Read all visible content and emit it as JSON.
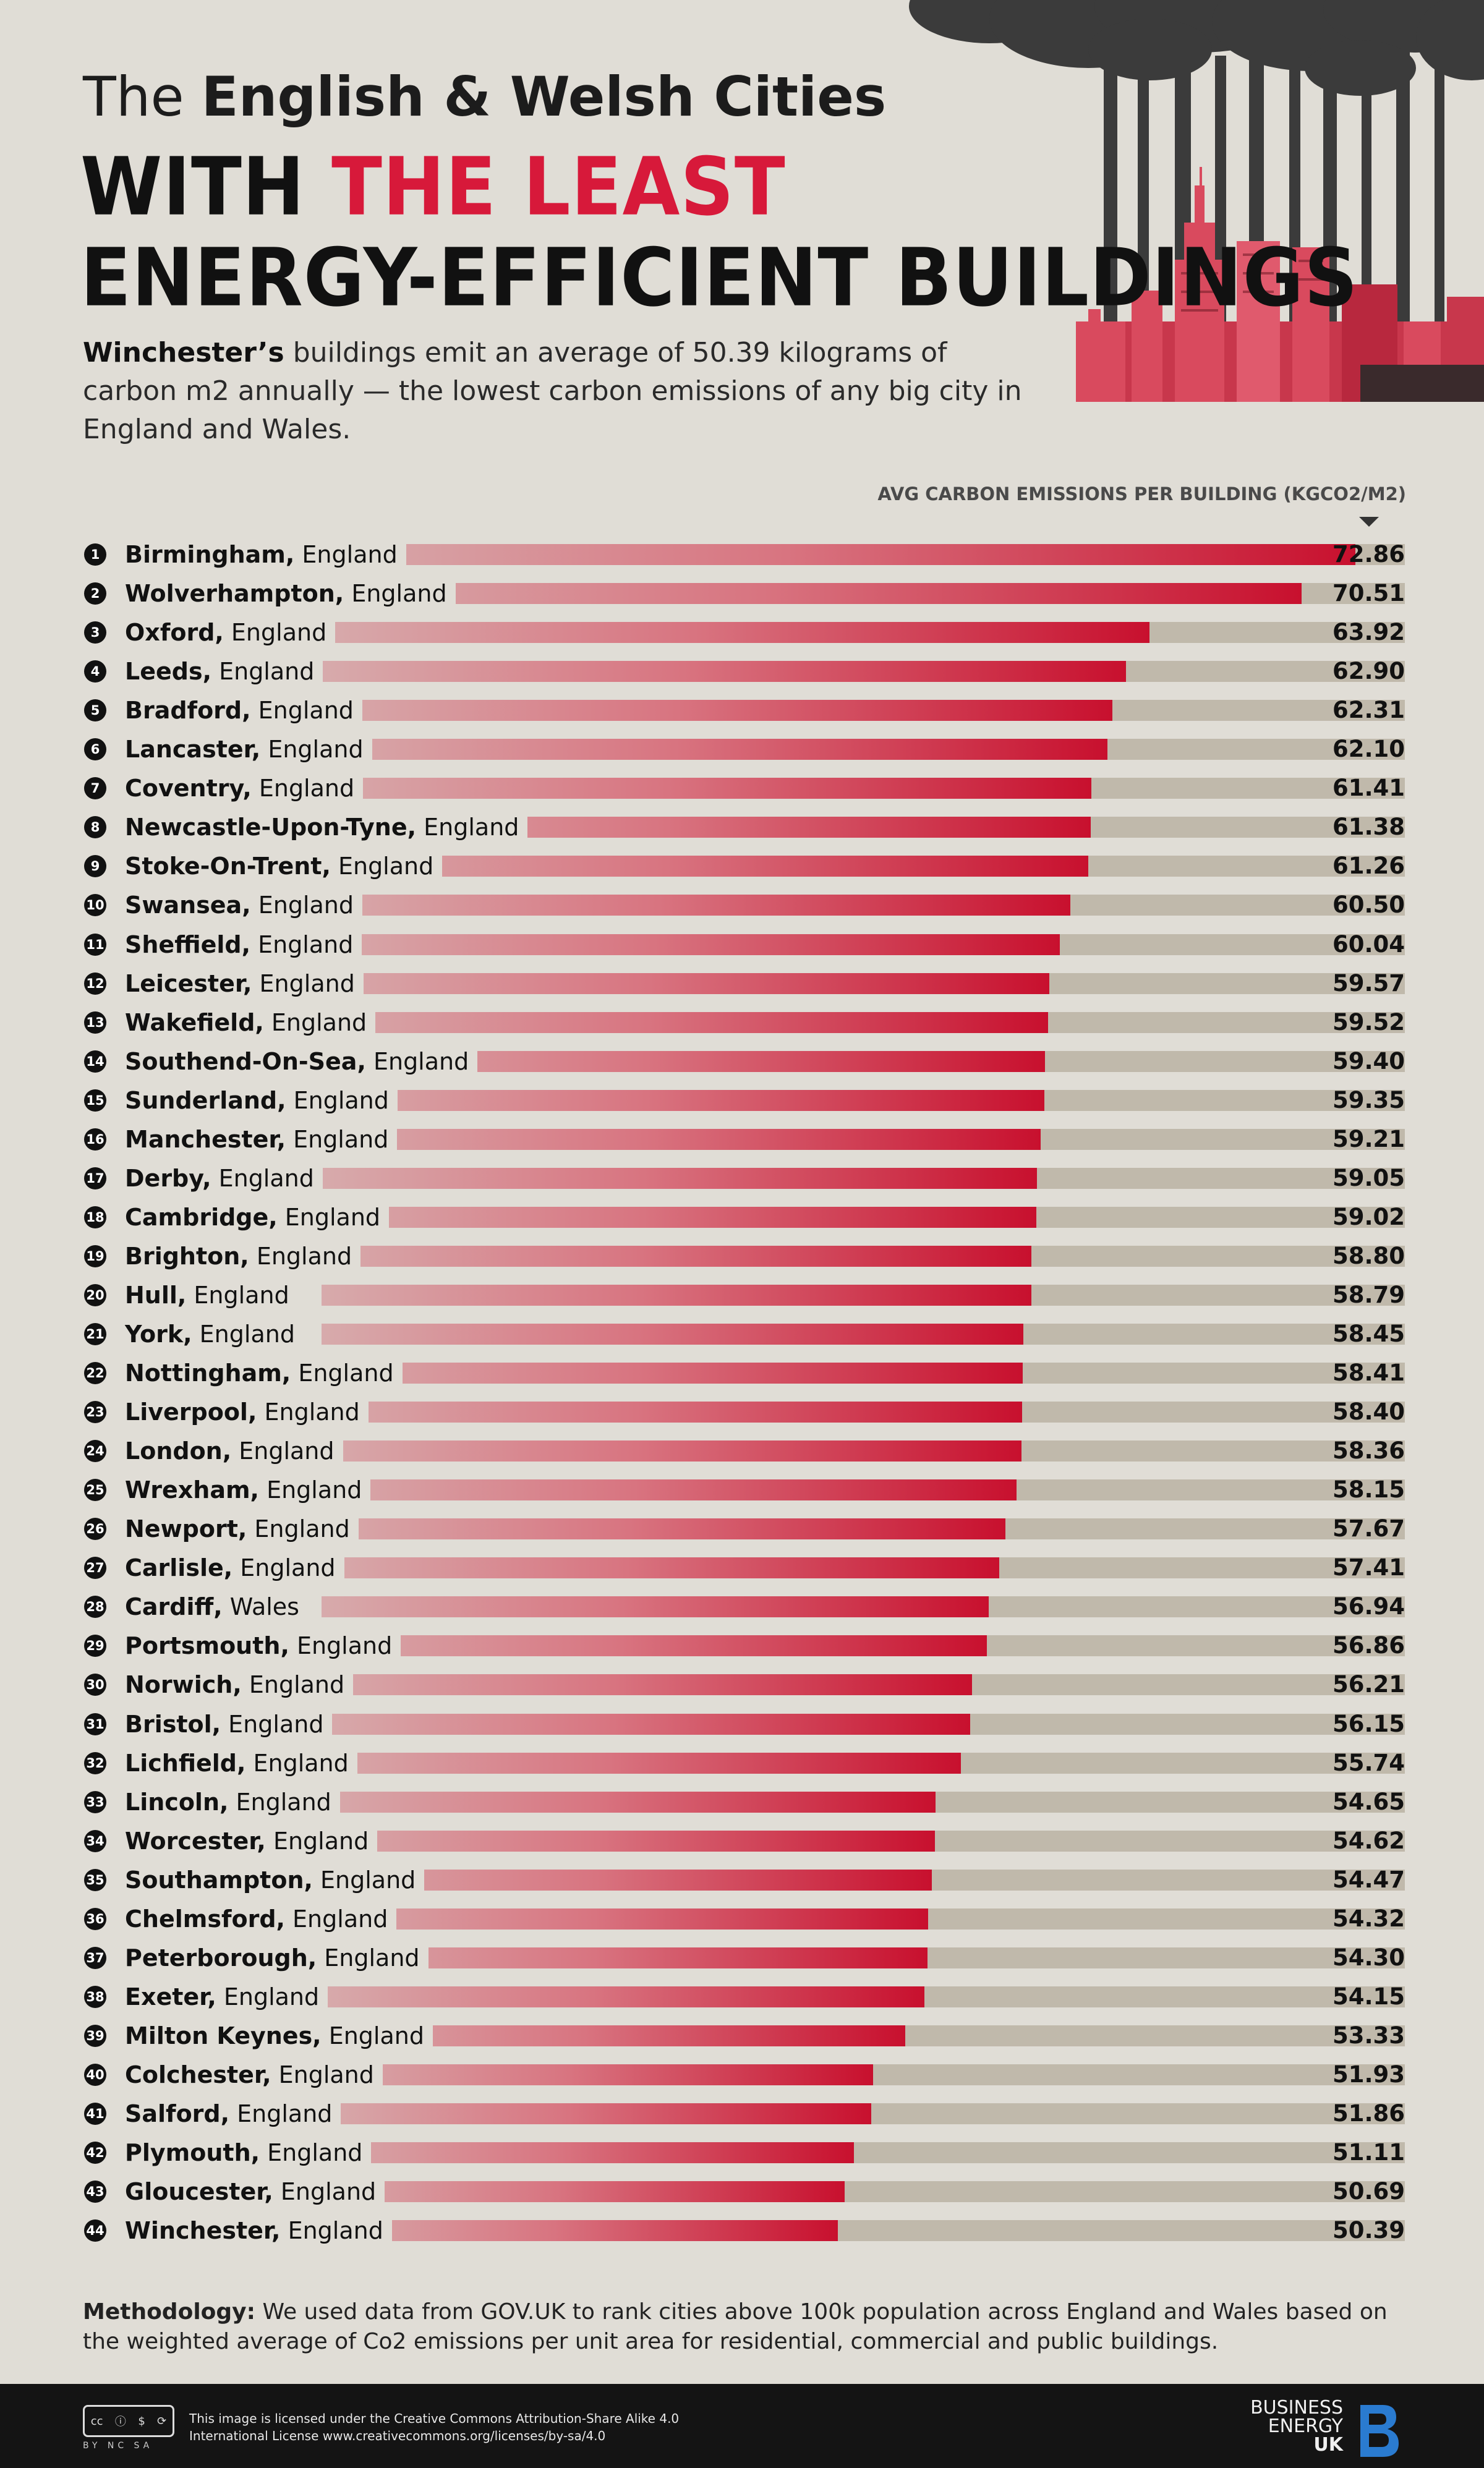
{
  "header": {
    "line1_plain": "The",
    "line1_bold": "English & Welsh Cities",
    "line2_plain": "WITH ",
    "line2_red": "THE LEAST",
    "line3": "ENERGY-EFFICIENT BUILDINGS"
  },
  "subtitle": {
    "bold": "Winchester’s",
    "text": " buildings emit an average of 50.39 kilograms of carbon m2 annually — the lowest carbon emissions of any big city in England and Wales."
  },
  "colors": {
    "accent_red": "#d7193a",
    "bar_end": "#c8102e",
    "track": "#c0b9ab",
    "background": "#e0ddd6"
  },
  "chart_data": {
    "type": "bar",
    "orientation": "horizontal",
    "title": "The English & Welsh Cities WITH THE LEAST ENERGY-EFFICIENT BUILDINGS",
    "value_axis_label": "AVG CARBON EMISSIONS PER BUILDING (KGCO2/M2)",
    "xlim": [
      28,
      75
    ],
    "rows": [
      {
        "rank": "1",
        "city": "Birmingham,",
        "country": " England",
        "value": 72.86,
        "value_label": "72.86"
      },
      {
        "rank": "2",
        "city": "Wolverhampton,",
        "country": " England",
        "value": 70.51,
        "value_label": "70.51"
      },
      {
        "rank": "3",
        "city": "Oxford,",
        "country": " England",
        "value": 63.92,
        "value_label": "63.92"
      },
      {
        "rank": "4",
        "city": "Leeds,",
        "country": " England",
        "value": 62.9,
        "value_label": "62.90"
      },
      {
        "rank": "5",
        "city": "Bradford,",
        "country": " England",
        "value": 62.31,
        "value_label": "62.31"
      },
      {
        "rank": "6",
        "city": "Lancaster,",
        "country": " England",
        "value": 62.1,
        "value_label": "62.10"
      },
      {
        "rank": "7",
        "city": "Coventry,",
        "country": " England",
        "value": 61.41,
        "value_label": "61.41"
      },
      {
        "rank": "8",
        "city": "Newcastle-Upon-Tyne,",
        "country": " England",
        "value": 61.38,
        "value_label": "61.38"
      },
      {
        "rank": "9",
        "city": "Stoke-On-Trent,",
        "country": " England",
        "value": 61.26,
        "value_label": "61.26"
      },
      {
        "rank": "10",
        "city": "Swansea,",
        "country": " England",
        "value": 60.5,
        "value_label": "60.50"
      },
      {
        "rank": "11",
        "city": "Sheffield,",
        "country": " England",
        "value": 60.04,
        "value_label": "60.04"
      },
      {
        "rank": "12",
        "city": "Leicester,",
        "country": " England",
        "value": 59.57,
        "value_label": "59.57"
      },
      {
        "rank": "13",
        "city": "Wakefield,",
        "country": " England",
        "value": 59.52,
        "value_label": "59.52"
      },
      {
        "rank": "14",
        "city": "Southend-On-Sea,",
        "country": " England",
        "value": 59.4,
        "value_label": "59.40"
      },
      {
        "rank": "15",
        "city": "Sunderland,",
        "country": " England",
        "value": 59.35,
        "value_label": "59.35"
      },
      {
        "rank": "16",
        "city": "Manchester,",
        "country": " England",
        "value": 59.21,
        "value_label": "59.21"
      },
      {
        "rank": "17",
        "city": "Derby,",
        "country": " England",
        "value": 59.05,
        "value_label": "59.05"
      },
      {
        "rank": "18",
        "city": "Cambridge,",
        "country": " England",
        "value": 59.02,
        "value_label": "59.02"
      },
      {
        "rank": "19",
        "city": "Brighton,",
        "country": " England",
        "value": 58.8,
        "value_label": "58.80"
      },
      {
        "rank": "20",
        "city": "Hull,",
        "country": " England",
        "value": 58.79,
        "value_label": "58.79"
      },
      {
        "rank": "21",
        "city": "York,",
        "country": " England",
        "value": 58.45,
        "value_label": "58.45"
      },
      {
        "rank": "22",
        "city": "Nottingham,",
        "country": " England",
        "value": 58.41,
        "value_label": "58.41"
      },
      {
        "rank": "23",
        "city": "Liverpool,",
        "country": " England",
        "value": 58.4,
        "value_label": "58.40"
      },
      {
        "rank": "24",
        "city": "London,",
        "country": " England",
        "value": 58.36,
        "value_label": "58.36"
      },
      {
        "rank": "25",
        "city": "Wrexham,",
        "country": " England",
        "value": 58.15,
        "value_label": "58.15"
      },
      {
        "rank": "26",
        "city": "Newport,",
        "country": " England",
        "value": 57.67,
        "value_label": "57.67"
      },
      {
        "rank": "27",
        "city": "Carlisle,",
        "country": " England",
        "value": 57.41,
        "value_label": "57.41"
      },
      {
        "rank": "28",
        "city": "Cardiff,",
        "country": " Wales",
        "value": 56.94,
        "value_label": "56.94"
      },
      {
        "rank": "29",
        "city": "Portsmouth,",
        "country": " England",
        "value": 56.86,
        "value_label": "56.86"
      },
      {
        "rank": "30",
        "city": "Norwich,",
        "country": " England",
        "value": 56.21,
        "value_label": "56.21"
      },
      {
        "rank": "31",
        "city": "Bristol,",
        "country": " England",
        "value": 56.15,
        "value_label": "56.15"
      },
      {
        "rank": "32",
        "city": "Lichfield,",
        "country": " England",
        "value": 55.74,
        "value_label": "55.74"
      },
      {
        "rank": "33",
        "city": "Lincoln,",
        "country": " England",
        "value": 54.65,
        "value_label": "54.65"
      },
      {
        "rank": "34",
        "city": "Worcester,",
        "country": " England",
        "value": 54.62,
        "value_label": "54.62"
      },
      {
        "rank": "35",
        "city": "Southampton,",
        "country": " England",
        "value": 54.47,
        "value_label": "54.47"
      },
      {
        "rank": "36",
        "city": "Chelmsford,",
        "country": " England",
        "value": 54.32,
        "value_label": "54.32"
      },
      {
        "rank": "37",
        "city": "Peterborough,",
        "country": " England",
        "value": 54.3,
        "value_label": "54.30"
      },
      {
        "rank": "38",
        "city": "Exeter,",
        "country": " England",
        "value": 54.15,
        "value_label": "54.15"
      },
      {
        "rank": "39",
        "city": "Milton Keynes,",
        "country": " England",
        "value": 53.33,
        "value_label": "53.33"
      },
      {
        "rank": "40",
        "city": "Colchester,",
        "country": " England",
        "value": 51.93,
        "value_label": "51.93"
      },
      {
        "rank": "41",
        "city": "Salford,",
        "country": " England",
        "value": 51.86,
        "value_label": "51.86"
      },
      {
        "rank": "42",
        "city": "Plymouth,",
        "country": " England",
        "value": 51.11,
        "value_label": "51.11"
      },
      {
        "rank": "43",
        "city": "Gloucester,",
        "country": " England",
        "value": 50.69,
        "value_label": "50.69"
      },
      {
        "rank": "44",
        "city": "Winchester,",
        "country": " England",
        "value": 50.39,
        "value_label": "50.39"
      }
    ]
  },
  "methodology": {
    "label": "Methodology:",
    "text": " We used data from GOV.UK to rank cities above 100k population across England and Wales based on the weighted average of Co2 emissions per unit area for residential, commercial and public buildings."
  },
  "footer": {
    "cc_badge": "cc",
    "cc_sub": "BY NC SA",
    "license_line1": "This image is licensed under the Creative Commons Attribution-Share Alike 4.0",
    "license_line2": "International License www.creativecommons.org/licenses/by-sa/4.0",
    "brand_line1": "BUSINESS",
    "brand_line2": "ENERGY",
    "brand_line3": "UK"
  }
}
